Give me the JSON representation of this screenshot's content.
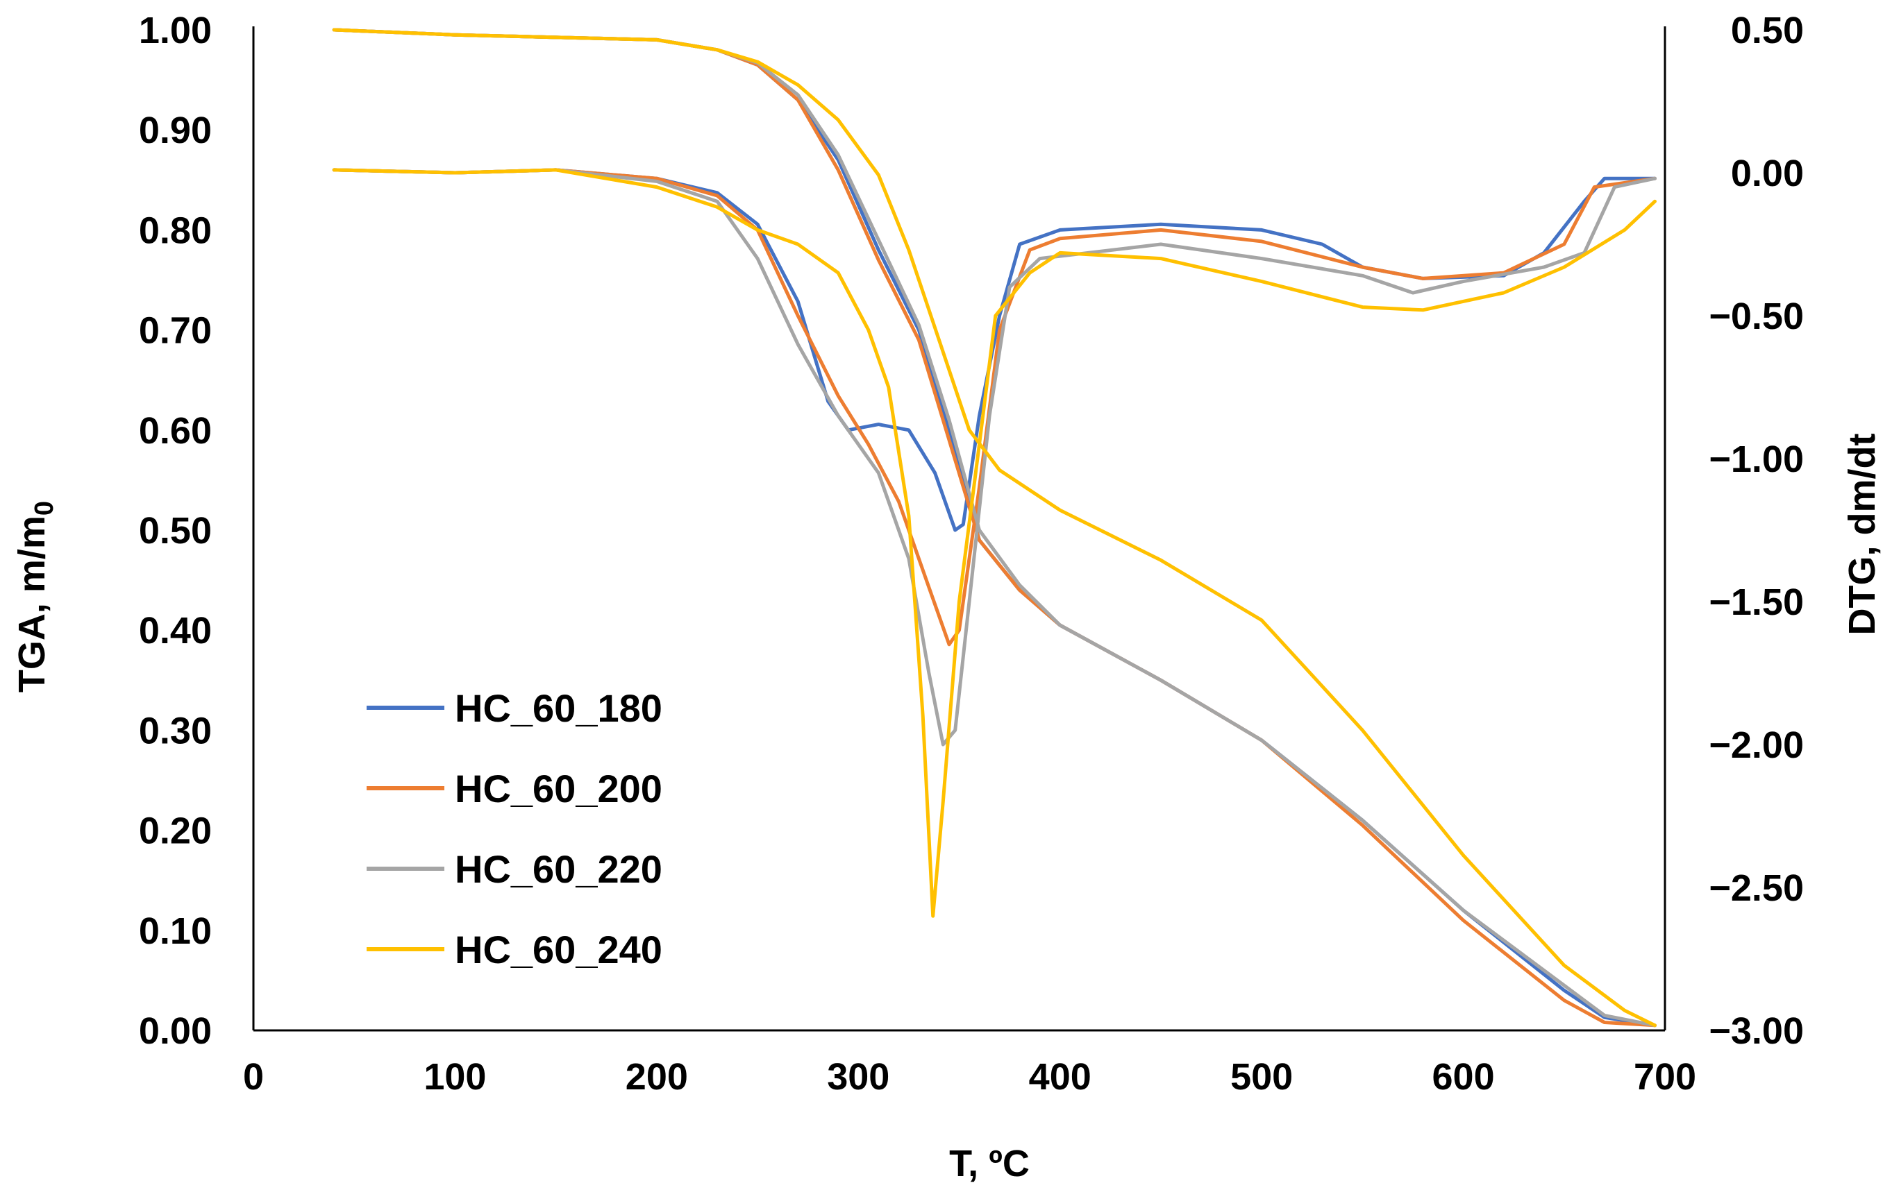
{
  "chart_data": {
    "type": "line",
    "xlabel": "T, ºC",
    "ylabel_left": "TGA, m/m",
    "ylabel_left_subscript": "0",
    "ylabel_right": "DTG, dm/dt",
    "xlim": [
      0,
      700
    ],
    "ylim_left": [
      0,
      1
    ],
    "ylim_right": [
      -3,
      0.5
    ],
    "x_ticks": [
      "0",
      "100",
      "200",
      "300",
      "400",
      "500",
      "600",
      "700"
    ],
    "y_left_ticks": [
      "0.00",
      "0.10",
      "0.20",
      "0.30",
      "0.40",
      "0.50",
      "0.60",
      "0.70",
      "0.80",
      "0.90",
      "1.00"
    ],
    "y_right_ticks": [
      "−3.00",
      "−2.50",
      "−2.00",
      "−1.50",
      "−1.00",
      "−0.50",
      "0.00",
      "0.50"
    ],
    "grid": false,
    "legend_position": "lower-left",
    "series": [
      {
        "name": "HC_60_180",
        "color": "#4472C4",
        "tga": [
          [
            40,
            1.0
          ],
          [
            100,
            0.995
          ],
          [
            200,
            0.99
          ],
          [
            230,
            0.98
          ],
          [
            250,
            0.965
          ],
          [
            270,
            0.93
          ],
          [
            290,
            0.87
          ],
          [
            310,
            0.78
          ],
          [
            330,
            0.7
          ],
          [
            345,
            0.6
          ],
          [
            360,
            0.49
          ],
          [
            380,
            0.44
          ],
          [
            400,
            0.405
          ],
          [
            450,
            0.35
          ],
          [
            500,
            0.29
          ],
          [
            550,
            0.21
          ],
          [
            600,
            0.12
          ],
          [
            650,
            0.04
          ],
          [
            670,
            0.013
          ],
          [
            695,
            0.005
          ]
        ],
        "dtg": [
          [
            40,
            0.01
          ],
          [
            100,
            0.0
          ],
          [
            150,
            0.01
          ],
          [
            200,
            -0.02
          ],
          [
            230,
            -0.07
          ],
          [
            250,
            -0.18
          ],
          [
            270,
            -0.45
          ],
          [
            285,
            -0.8
          ],
          [
            295,
            -0.9
          ],
          [
            310,
            -0.88
          ],
          [
            325,
            -0.9
          ],
          [
            338,
            -1.05
          ],
          [
            348,
            -1.25
          ],
          [
            352,
            -1.23
          ],
          [
            360,
            -0.85
          ],
          [
            370,
            -0.5
          ],
          [
            380,
            -0.25
          ],
          [
            400,
            -0.2
          ],
          [
            450,
            -0.18
          ],
          [
            500,
            -0.2
          ],
          [
            530,
            -0.25
          ],
          [
            550,
            -0.33
          ],
          [
            580,
            -0.37
          ],
          [
            620,
            -0.36
          ],
          [
            640,
            -0.28
          ],
          [
            660,
            -0.1
          ],
          [
            670,
            -0.02
          ],
          [
            695,
            -0.02
          ]
        ]
      },
      {
        "name": "HC_60_200",
        "color": "#ED7D31",
        "tga": [
          [
            40,
            1.0
          ],
          [
            100,
            0.995
          ],
          [
            200,
            0.99
          ],
          [
            230,
            0.98
          ],
          [
            250,
            0.965
          ],
          [
            270,
            0.93
          ],
          [
            290,
            0.86
          ],
          [
            310,
            0.77
          ],
          [
            330,
            0.69
          ],
          [
            345,
            0.59
          ],
          [
            360,
            0.49
          ],
          [
            380,
            0.44
          ],
          [
            400,
            0.405
          ],
          [
            450,
            0.35
          ],
          [
            500,
            0.29
          ],
          [
            550,
            0.205
          ],
          [
            600,
            0.11
          ],
          [
            650,
            0.03
          ],
          [
            670,
            0.008
          ],
          [
            695,
            0.005
          ]
        ],
        "dtg": [
          [
            40,
            0.01
          ],
          [
            100,
            0.0
          ],
          [
            150,
            0.01
          ],
          [
            200,
            -0.02
          ],
          [
            230,
            -0.08
          ],
          [
            250,
            -0.2
          ],
          [
            270,
            -0.5
          ],
          [
            290,
            -0.78
          ],
          [
            305,
            -0.95
          ],
          [
            320,
            -1.15
          ],
          [
            335,
            -1.45
          ],
          [
            345,
            -1.65
          ],
          [
            350,
            -1.6
          ],
          [
            360,
            -1.1
          ],
          [
            370,
            -0.55
          ],
          [
            385,
            -0.27
          ],
          [
            400,
            -0.23
          ],
          [
            450,
            -0.2
          ],
          [
            500,
            -0.24
          ],
          [
            550,
            -0.33
          ],
          [
            580,
            -0.37
          ],
          [
            620,
            -0.35
          ],
          [
            650,
            -0.25
          ],
          [
            665,
            -0.05
          ],
          [
            695,
            -0.02
          ]
        ]
      },
      {
        "name": "HC_60_220",
        "color": "#A5A5A5",
        "tga": [
          [
            40,
            1.0
          ],
          [
            100,
            0.995
          ],
          [
            200,
            0.99
          ],
          [
            230,
            0.98
          ],
          [
            250,
            0.967
          ],
          [
            270,
            0.935
          ],
          [
            290,
            0.875
          ],
          [
            310,
            0.79
          ],
          [
            330,
            0.705
          ],
          [
            345,
            0.61
          ],
          [
            360,
            0.5
          ],
          [
            380,
            0.445
          ],
          [
            400,
            0.405
          ],
          [
            450,
            0.35
          ],
          [
            500,
            0.29
          ],
          [
            550,
            0.21
          ],
          [
            600,
            0.12
          ],
          [
            650,
            0.045
          ],
          [
            670,
            0.015
          ],
          [
            695,
            0.005
          ]
        ],
        "dtg": [
          [
            40,
            0.01
          ],
          [
            100,
            0.0
          ],
          [
            150,
            0.01
          ],
          [
            200,
            -0.03
          ],
          [
            230,
            -0.1
          ],
          [
            250,
            -0.3
          ],
          [
            270,
            -0.6
          ],
          [
            290,
            -0.85
          ],
          [
            310,
            -1.05
          ],
          [
            325,
            -1.35
          ],
          [
            335,
            -1.75
          ],
          [
            342,
            -2.0
          ],
          [
            348,
            -1.95
          ],
          [
            355,
            -1.5
          ],
          [
            365,
            -0.85
          ],
          [
            375,
            -0.4
          ],
          [
            390,
            -0.3
          ],
          [
            450,
            -0.25
          ],
          [
            500,
            -0.3
          ],
          [
            550,
            -0.36
          ],
          [
            575,
            -0.42
          ],
          [
            600,
            -0.38
          ],
          [
            640,
            -0.33
          ],
          [
            660,
            -0.28
          ],
          [
            675,
            -0.05
          ],
          [
            695,
            -0.02
          ]
        ]
      },
      {
        "name": "HC_60_240",
        "color": "#FFC000",
        "tga": [
          [
            40,
            1.0
          ],
          [
            100,
            0.995
          ],
          [
            200,
            0.99
          ],
          [
            230,
            0.98
          ],
          [
            250,
            0.968
          ],
          [
            270,
            0.945
          ],
          [
            290,
            0.91
          ],
          [
            310,
            0.855
          ],
          [
            325,
            0.78
          ],
          [
            340,
            0.69
          ],
          [
            355,
            0.6
          ],
          [
            370,
            0.56
          ],
          [
            400,
            0.52
          ],
          [
            450,
            0.47
          ],
          [
            500,
            0.41
          ],
          [
            550,
            0.3
          ],
          [
            600,
            0.175
          ],
          [
            650,
            0.065
          ],
          [
            680,
            0.02
          ],
          [
            695,
            0.005
          ]
        ],
        "dtg": [
          [
            40,
            0.01
          ],
          [
            100,
            0.0
          ],
          [
            150,
            0.01
          ],
          [
            200,
            -0.05
          ],
          [
            230,
            -0.12
          ],
          [
            250,
            -0.2
          ],
          [
            270,
            -0.25
          ],
          [
            290,
            -0.35
          ],
          [
            305,
            -0.55
          ],
          [
            315,
            -0.75
          ],
          [
            325,
            -1.2
          ],
          [
            332,
            -1.9
          ],
          [
            337,
            -2.6
          ],
          [
            342,
            -2.2
          ],
          [
            350,
            -1.5
          ],
          [
            360,
            -0.95
          ],
          [
            368,
            -0.5
          ],
          [
            385,
            -0.35
          ],
          [
            400,
            -0.28
          ],
          [
            450,
            -0.3
          ],
          [
            500,
            -0.38
          ],
          [
            550,
            -0.47
          ],
          [
            580,
            -0.48
          ],
          [
            620,
            -0.42
          ],
          [
            650,
            -0.33
          ],
          [
            680,
            -0.2
          ],
          [
            695,
            -0.1
          ]
        ]
      }
    ]
  }
}
